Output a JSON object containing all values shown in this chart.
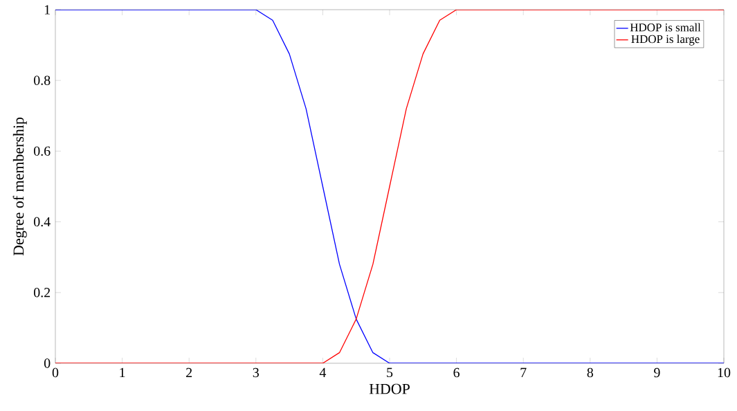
{
  "chart_data": {
    "type": "line",
    "xlabel": "HDOP",
    "ylabel": "Degree of membership",
    "xlim": [
      0,
      10
    ],
    "ylim": [
      0,
      1
    ],
    "xticks": [
      0,
      1,
      2,
      3,
      4,
      5,
      6,
      7,
      8,
      9,
      10
    ],
    "yticks": [
      0,
      0.2,
      0.4,
      0.6,
      0.8,
      1
    ],
    "legend": "top right",
    "grid": false,
    "marker": "none",
    "line_style": "solid",
    "series": [
      {
        "name": "HDOP is small",
        "color": "#0000ff",
        "x": [
          0,
          3,
          3.25,
          3.5,
          3.75,
          4,
          4.25,
          4.5,
          4.75,
          5,
          10
        ],
        "values": [
          1,
          1,
          0.97,
          0.875,
          0.72,
          0.5,
          0.28,
          0.125,
          0.03,
          0,
          0
        ]
      },
      {
        "name": "HDOP is large",
        "color": "#ff0000",
        "x": [
          0,
          4,
          4.25,
          4.5,
          4.75,
          5,
          5.25,
          5.5,
          5.75,
          6,
          10
        ],
        "values": [
          0,
          0,
          0.03,
          0.125,
          0.28,
          0.5,
          0.72,
          0.875,
          0.97,
          1,
          1
        ]
      }
    ]
  }
}
